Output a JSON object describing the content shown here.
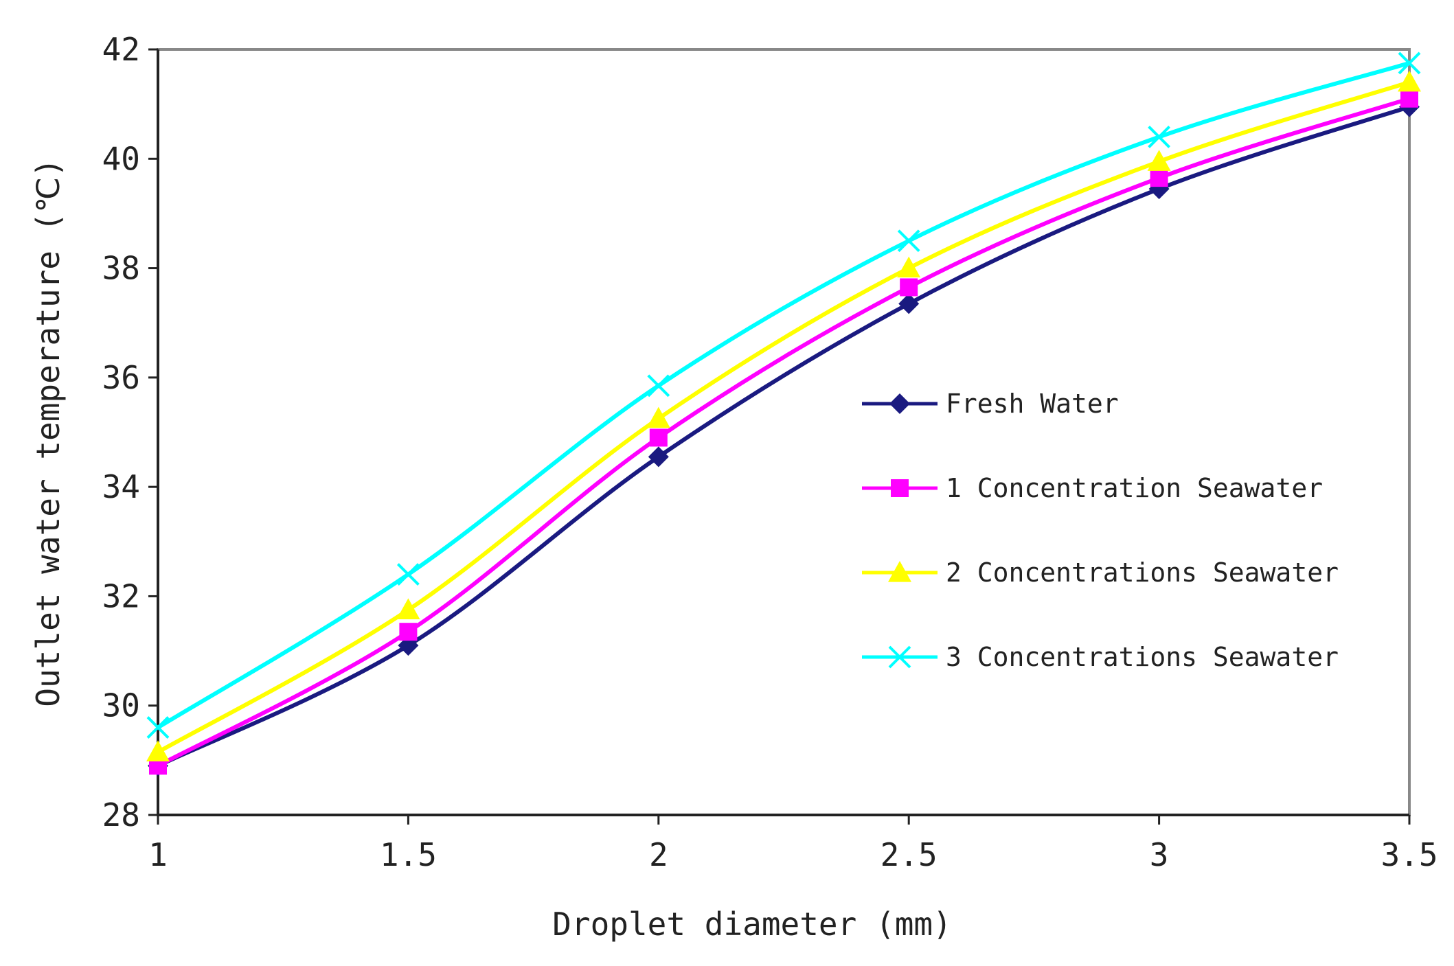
{
  "chart_data": {
    "type": "line",
    "title": "",
    "xlabel": "Droplet diameter (mm)",
    "ylabel": "Outlet water temperature (℃)",
    "x": [
      1,
      1.5,
      2,
      2.5,
      3,
      3.5
    ],
    "x_tick_labels": [
      "1",
      "1.5",
      "2",
      "2.5",
      "3",
      "3.5"
    ],
    "xlim": [
      1,
      3.5
    ],
    "ylim": [
      28,
      42
    ],
    "y_ticks": [
      28,
      30,
      32,
      34,
      36,
      38,
      40,
      42
    ],
    "y_tick_labels": [
      "28",
      "30",
      "32",
      "34",
      "36",
      "38",
      "40",
      "42"
    ],
    "grid": false,
    "legend_position": "center-right",
    "series": [
      {
        "name": "Fresh Water",
        "color": "#1a1a80",
        "marker": "diamond",
        "values": [
          28.9,
          31.1,
          34.55,
          37.35,
          39.45,
          40.95
        ]
      },
      {
        "name": "1 Concentration Seawater",
        "color": "#ff00ff",
        "marker": "square",
        "values": [
          28.9,
          31.35,
          34.9,
          37.65,
          39.65,
          41.1
        ]
      },
      {
        "name": "2 Concentrations Seawater",
        "color": "#ffff00",
        "marker": "triangle",
        "values": [
          29.15,
          31.75,
          35.25,
          38.0,
          39.95,
          41.4
        ]
      },
      {
        "name": "3 Concentrations Seawater",
        "color": "#00ffff",
        "marker": "x",
        "values": [
          29.6,
          32.4,
          35.85,
          38.5,
          40.4,
          41.75
        ]
      }
    ]
  }
}
